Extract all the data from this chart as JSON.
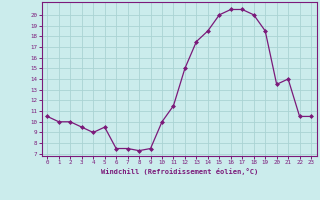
{
  "x": [
    0,
    1,
    2,
    3,
    4,
    5,
    6,
    7,
    8,
    9,
    10,
    11,
    12,
    13,
    14,
    15,
    16,
    17,
    18,
    19,
    20,
    21,
    22,
    23
  ],
  "y": [
    10.5,
    10.0,
    10.0,
    9.5,
    9.0,
    9.5,
    7.5,
    7.5,
    7.3,
    7.5,
    10.0,
    11.5,
    15.0,
    17.5,
    18.5,
    20.0,
    20.5,
    20.5,
    20.0,
    18.5,
    13.5,
    14.0,
    10.5,
    10.5
  ],
  "line_color": "#7b1a7a",
  "marker": "D",
  "marker_size": 2.0,
  "xlabel": "Windchill (Refroidissement éolien,°C)",
  "ylabel_ticks": [
    7,
    8,
    9,
    10,
    11,
    12,
    13,
    14,
    15,
    16,
    17,
    18,
    19,
    20
  ],
  "xlim": [
    -0.5,
    23.5
  ],
  "ylim": [
    6.8,
    21.2
  ],
  "bg_color": "#cbecec",
  "grid_color": "#aad4d4",
  "tick_color": "#7b1a7a",
  "label_color": "#7b1a7a",
  "spine_color": "#7b1a7a"
}
